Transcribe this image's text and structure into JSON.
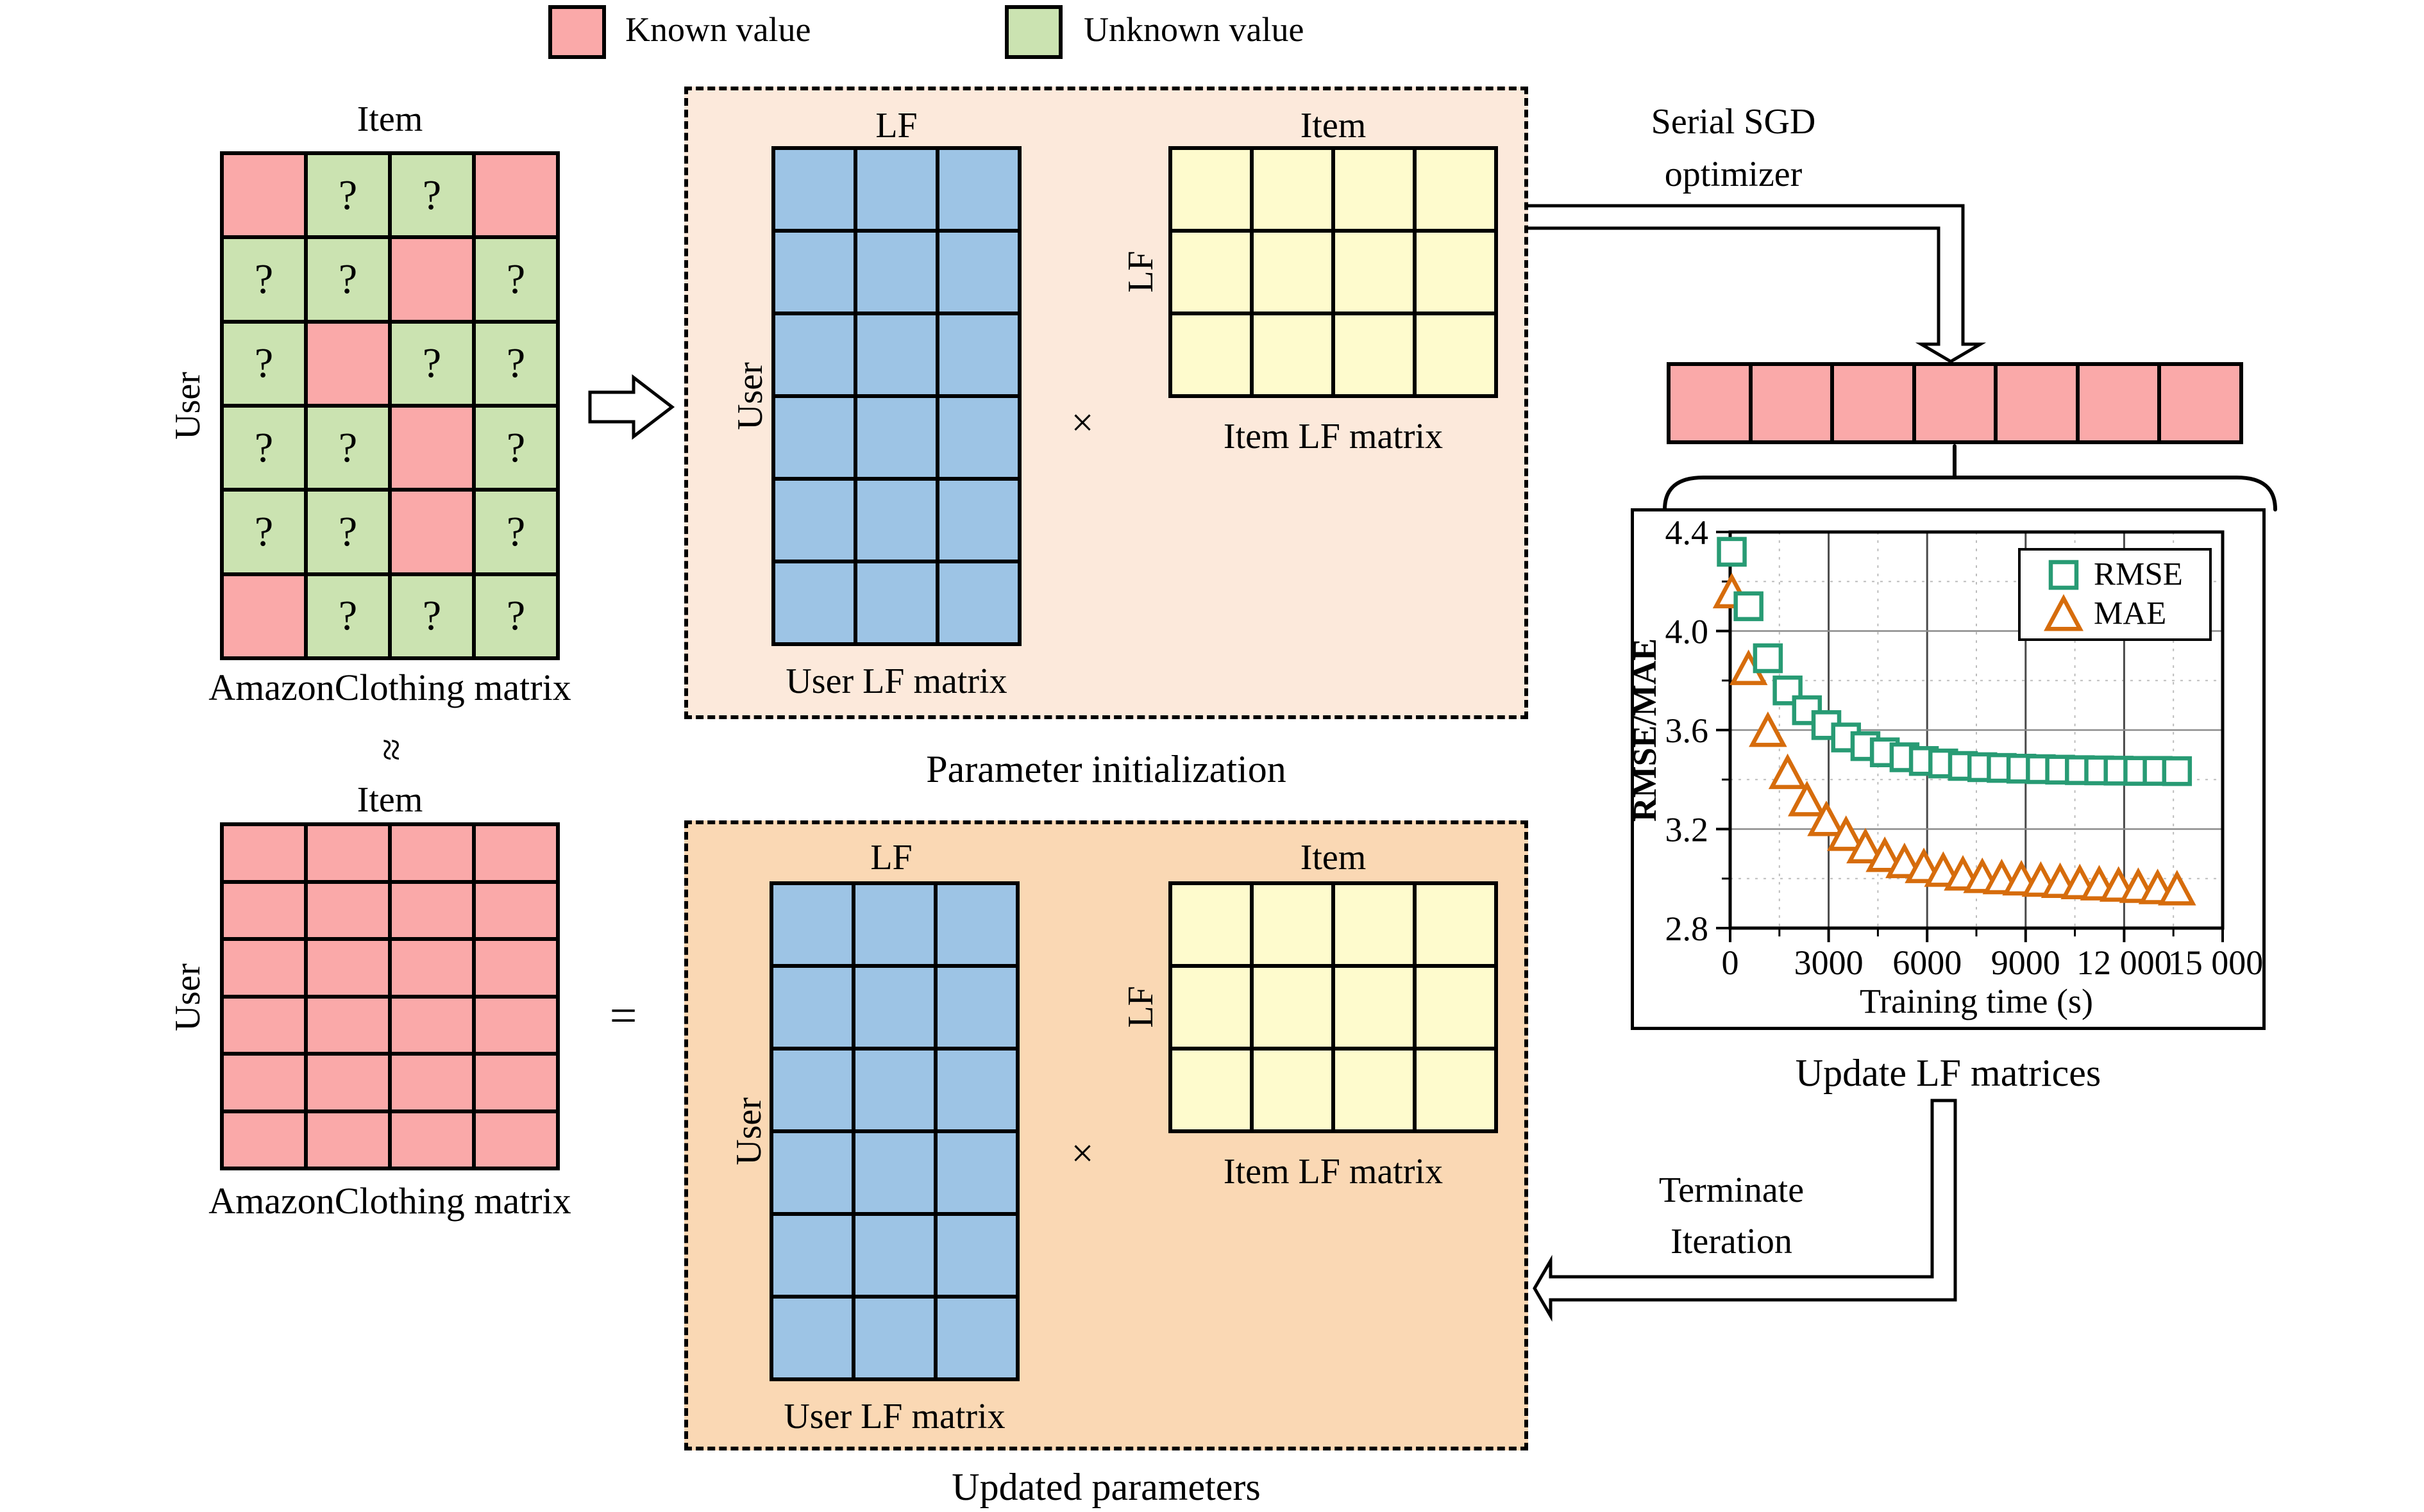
{
  "colors": {
    "known_pink": "#FAA9A9",
    "unknown_green": "#CBE3B1",
    "lf_blue": "#9DC4E5",
    "lf_yellow": "#FEFBCD",
    "box_peach_light": "#FCE9DB",
    "box_peach_dark": "#FAD8B4",
    "rmse": "#289B74",
    "mae": "#D66C0C",
    "grid_major_h": "#8C8C8C",
    "grid_major_v": "#4A4A4A",
    "grid_minor": "#BDBDBD"
  },
  "legend": {
    "known_label": "Known value",
    "unknown_label": "Unknown value"
  },
  "rating_matrix": {
    "item_label": "Item",
    "user_label": "User",
    "caption": "AmazonClothing matrix",
    "mark": "?",
    "rows": [
      "KUUK",
      "UUKU",
      "UKUU",
      "UUKU",
      "UUKU",
      "KUUU"
    ]
  },
  "approx_symbol": "≈",
  "equals_symbol": "=",
  "full_matrix": {
    "item_label": "Item",
    "user_label": "User",
    "caption": "AmazonClothing matrix",
    "rows": [
      "KKKK",
      "KKKK",
      "KKKK",
      "KKKK",
      "KKKK",
      "KKKK"
    ]
  },
  "init_box": {
    "caption": "Parameter initialization",
    "times": "×",
    "user_lf": {
      "top_label": "LF",
      "left_label": "User",
      "caption": "User LF matrix",
      "rows": 6,
      "cols": 3,
      "cell": "B"
    },
    "item_lf": {
      "top_label": "Item",
      "left_label": "LF",
      "caption": "Item LF matrix",
      "rows": 3,
      "cols": 4,
      "cell": "Y"
    }
  },
  "updated_box": {
    "caption": "Updated parameters",
    "times": "×",
    "user_lf": {
      "top_label": "LF",
      "left_label": "User",
      "caption": "User LF matrix",
      "rows": 6,
      "cols": 3,
      "cell": "B"
    },
    "item_lf": {
      "top_label": "Item",
      "left_label": "LF",
      "caption": "Item LF matrix",
      "rows": 3,
      "cols": 4,
      "cell": "Y"
    }
  },
  "serial_sgd": {
    "line1": "Serial SGD",
    "line2": "optimizer"
  },
  "terminate": {
    "line1": "Terminate",
    "line2": "Iteration"
  },
  "lf_row": {
    "rows": 1,
    "cols": 7,
    "cell": "K"
  },
  "chart_caption": "Update LF matrices",
  "chart_data": {
    "type": "scatter",
    "title": "",
    "xlabel": "Training time (s)",
    "ylabel": "RMSE/MAE",
    "xlim": [
      0,
      15000
    ],
    "ylim": [
      2.8,
      4.4
    ],
    "grid": true,
    "legend_position": "upper right",
    "x_ticks": [
      0,
      3000,
      6000,
      9000,
      12000,
      15000
    ],
    "x_tick_labels": [
      "0",
      "3000",
      "6000",
      "9000",
      "12 000",
      "15 000"
    ],
    "x_minor_ticks": [
      1500,
      4500,
      7500,
      10500,
      13500
    ],
    "y_ticks": [
      4.4,
      4.0,
      3.6,
      3.2,
      2.8
    ],
    "y_tick_labels": [
      "4.4",
      "4.0",
      "3.6",
      "3.2",
      "2.8"
    ],
    "y_minor_ticks": [
      4.2,
      3.8,
      3.4,
      3.0
    ],
    "series": [
      {
        "name": "MAE",
        "marker": "triangle",
        "color": "#D66C0C",
        "x": [
          50,
          560,
          1150,
          1750,
          2340,
          2930,
          3530,
          4120,
          4710,
          5310,
          5900,
          6490,
          7090,
          7680,
          8270,
          8870,
          9460,
          10050,
          10650,
          11240,
          11830,
          12430,
          13020,
          13610
        ],
        "y": [
          4.15,
          3.84,
          3.59,
          3.42,
          3.31,
          3.23,
          3.17,
          3.12,
          3.085,
          3.06,
          3.04,
          3.025,
          3.01,
          3.0,
          2.995,
          2.99,
          2.985,
          2.98,
          2.975,
          2.97,
          2.965,
          2.96,
          2.955,
          2.95
        ]
      },
      {
        "name": "RMSE",
        "marker": "square",
        "color": "#289B74",
        "x": [
          50,
          560,
          1150,
          1750,
          2340,
          2930,
          3530,
          4120,
          4710,
          5310,
          5900,
          6490,
          7090,
          7680,
          8270,
          8870,
          9460,
          10050,
          10650,
          11240,
          11830,
          12430,
          13020,
          13610
        ],
        "y": [
          4.32,
          4.1,
          3.89,
          3.76,
          3.68,
          3.62,
          3.57,
          3.535,
          3.51,
          3.49,
          3.475,
          3.465,
          3.455,
          3.45,
          3.447,
          3.444,
          3.442,
          3.44,
          3.438,
          3.437,
          3.436,
          3.435,
          3.435,
          3.434
        ]
      }
    ]
  }
}
